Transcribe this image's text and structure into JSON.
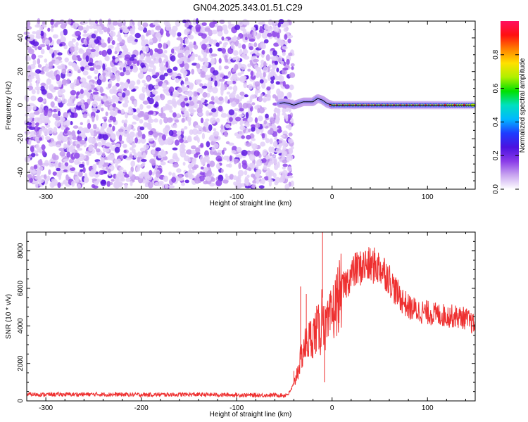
{
  "title": "GN04.2025.343.01.51.C29",
  "chart_data": [
    {
      "type": "heatmap",
      "xlabel": "Height of straight line (km)",
      "ylabel": "Frequency (Hz)",
      "xlim": [
        -320,
        150
      ],
      "ylim": [
        -50,
        50
      ],
      "x_ticks": [
        -300,
        -200,
        -100,
        0,
        100
      ],
      "y_ticks": [
        -40,
        -20,
        0,
        20,
        40
      ],
      "colorbar": {
        "label": "Normalized spectral amplitude",
        "range": [
          0,
          1
        ],
        "ticks": [
          "0.0",
          "0.2",
          "0.4",
          "0.6",
          "0.8"
        ],
        "tick_values": [
          0,
          0.2,
          0.4,
          0.6,
          0.8
        ],
        "colors": [
          "#ffffff",
          "#c9a6f0",
          "#8a3be8",
          "#4b12e0",
          "#1e3cff",
          "#00b8ff",
          "#00e0c0",
          "#00e000",
          "#b0f000",
          "#ffe000",
          "#ff8000",
          "#ff1010",
          "#ff1060"
        ]
      },
      "noise_region_x": [
        -320,
        -50
      ],
      "signal_trace": {
        "x": [
          -55,
          -50,
          -45,
          -40,
          -35,
          -30,
          -25,
          -20,
          -15,
          -10,
          -5,
          0,
          20,
          40,
          60,
          80,
          100,
          120,
          150
        ],
        "y": [
          1,
          1.5,
          1,
          0,
          1,
          2,
          2,
          2,
          4,
          3,
          1,
          0,
          0,
          0,
          0,
          0,
          0,
          0,
          0
        ],
        "amplitude": [
          0.3,
          0.6,
          0.8,
          0.85,
          0.8,
          0.75,
          0.8,
          0.8,
          0.7,
          0.75,
          0.7,
          0.9,
          0.92,
          0.95,
          0.9,
          0.93,
          0.92,
          0.9,
          0.88
        ]
      }
    },
    {
      "type": "line",
      "xlabel": "Height of straight line (km)",
      "ylabel": "SNR (10 * v/v)",
      "xlim": [
        -320,
        150
      ],
      "ylim": [
        0,
        9000
      ],
      "x_ticks": [
        -300,
        -200,
        -100,
        0,
        100
      ],
      "y_ticks": [
        0,
        2000,
        4000,
        6000,
        8000
      ],
      "color": "#ee3030",
      "x": [
        -320,
        -300,
        -250,
        -200,
        -150,
        -100,
        -80,
        -60,
        -50,
        -45,
        -40,
        -35,
        -30,
        -25,
        -20,
        -15,
        -12,
        -10,
        -8,
        -5,
        0,
        5,
        10,
        15,
        20,
        25,
        30,
        35,
        40,
        45,
        50,
        55,
        60,
        65,
        70,
        75,
        80,
        90,
        100,
        110,
        120,
        130,
        140,
        150
      ],
      "y": [
        350,
        340,
        350,
        330,
        340,
        320,
        300,
        310,
        300,
        400,
        900,
        1800,
        2800,
        3200,
        3500,
        3900,
        3600,
        5500,
        3800,
        3900,
        4600,
        5300,
        5900,
        6300,
        6700,
        7000,
        7100,
        7200,
        7200,
        7200,
        7100,
        6900,
        6500,
        6000,
        5600,
        5300,
        5000,
        4800,
        4700,
        4600,
        4550,
        4500,
        4400,
        4000
      ],
      "spikes": [
        {
          "x": -40,
          "y": 1600
        },
        {
          "x": -33,
          "y": 6100
        },
        {
          "x": -27,
          "y": 5700
        },
        {
          "x": -10,
          "y": 9000
        },
        {
          "x": -8,
          "y": 1000
        },
        {
          "x": 25,
          "y": 7900
        },
        {
          "x": 35,
          "y": 8000
        }
      ]
    }
  ]
}
